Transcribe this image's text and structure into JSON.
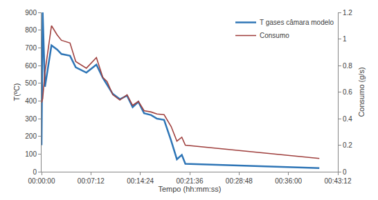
{
  "chart_data": {
    "type": "line",
    "x_label": "Tempo (hh:mm:ss)",
    "y_label": "T(ºC)",
    "y2_label": "Consumo (g/s)",
    "x": [
      0,
      10,
      30,
      87,
      137,
      174,
      249,
      299,
      392,
      480,
      536,
      573,
      623,
      685,
      748,
      797,
      847,
      897,
      959,
      1009,
      1072,
      1134,
      1184,
      1227,
      1258,
      2430
    ],
    "series": [
      {
        "name": "T gases câmara modelo",
        "color": "#2e75b6",
        "axis": "y",
        "values": [
          150,
          900,
          480,
          714,
          690,
          665,
          655,
          590,
          560,
          605,
          530,
          490,
          440,
          410,
          430,
          365,
          395,
          330,
          320,
          300,
          293,
          175,
          70,
          95,
          45,
          20
        ]
      },
      {
        "name": "Consumo",
        "color": "#a0413f",
        "axis": "y2",
        "values": [
          0.52,
          0.55,
          0.75,
          1.1,
          1.03,
          0.99,
          0.97,
          0.83,
          0.78,
          0.86,
          0.71,
          0.68,
          0.58,
          0.54,
          0.58,
          0.5,
          0.53,
          0.46,
          0.45,
          0.435,
          0.43,
          0.34,
          0.23,
          0.26,
          0.2,
          0.1
        ]
      }
    ],
    "xlim": [
      0,
      2592
    ],
    "xticks": [
      {
        "value": 0,
        "label": "00:00:00"
      },
      {
        "value": 432,
        "label": "00:07:12"
      },
      {
        "value": 864,
        "label": "00:14:24"
      },
      {
        "value": 1296,
        "label": "00:21:36"
      },
      {
        "value": 1728,
        "label": "00:28:48"
      },
      {
        "value": 2160,
        "label": "00:36:00"
      },
      {
        "value": 2592,
        "label": "00:43:12"
      }
    ],
    "ylim": [
      0,
      900
    ],
    "yticks": [
      0,
      100,
      200,
      300,
      400,
      500,
      600,
      700,
      800,
      900
    ],
    "y2lim": [
      0,
      1.2
    ],
    "y2ticks": [
      0,
      0.2,
      0.4,
      0.6,
      0.8,
      1,
      1.2
    ],
    "grid": false,
    "legend": "top right"
  }
}
